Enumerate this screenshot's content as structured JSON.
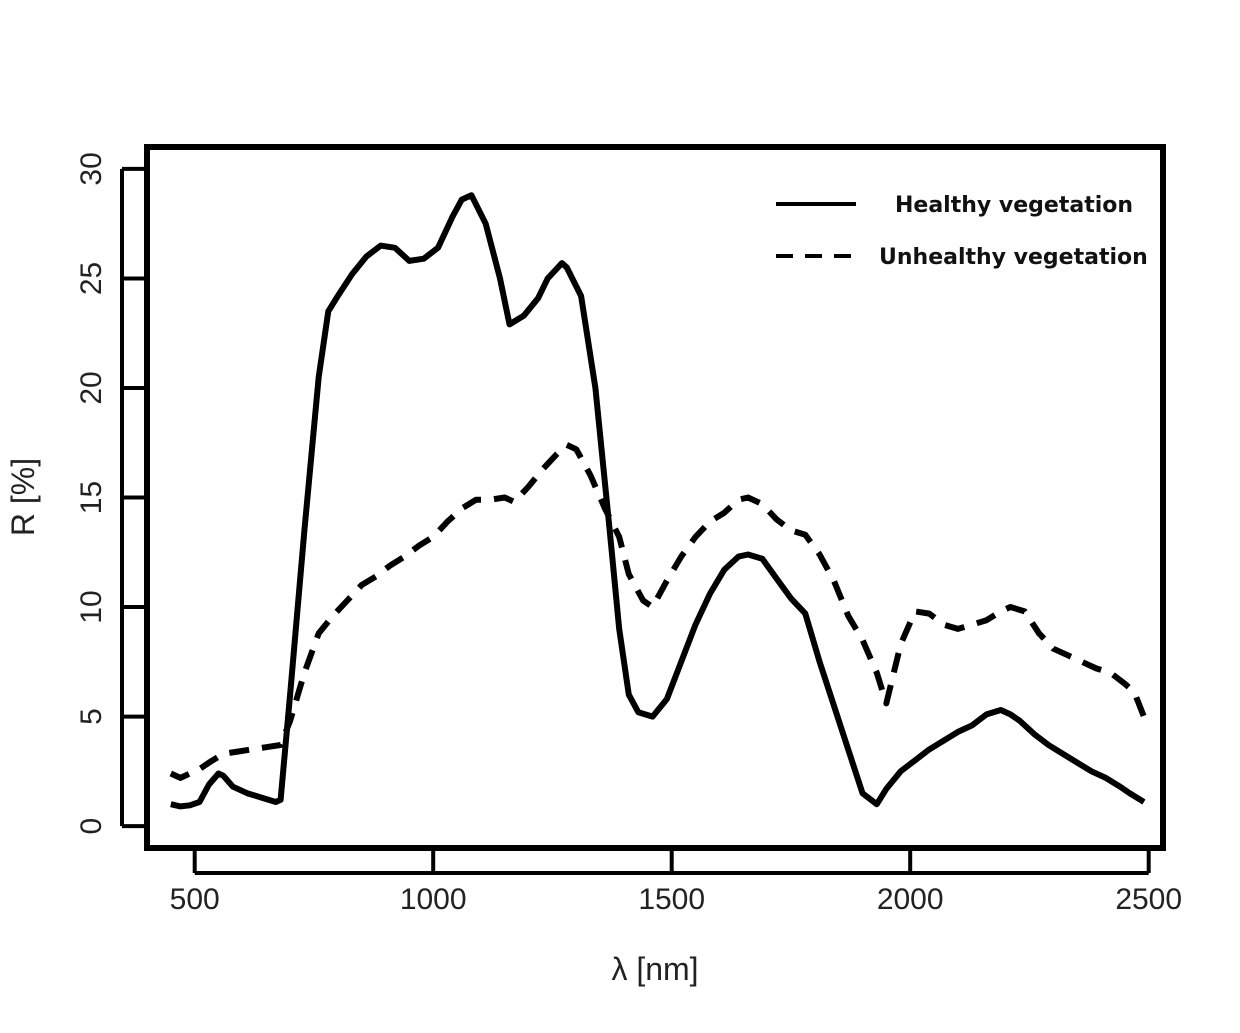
{
  "chart_data": {
    "type": "line",
    "title": "",
    "xlabel": "λ [nm]",
    "ylabel": "R [%]",
    "xlim": [
      400,
      2530
    ],
    "ylim": [
      -1,
      31
    ],
    "x_ticks": [
      500,
      1000,
      1500,
      2000,
      2500
    ],
    "y_ticks": [
      0,
      5,
      10,
      15,
      20,
      25,
      30
    ],
    "grid": false,
    "legend": "top-right",
    "series": [
      {
        "name": "Healthy vegetation",
        "style": "solid",
        "color": "#000000",
        "x": [
          450,
          470,
          490,
          510,
          530,
          550,
          560,
          580,
          610,
          640,
          670,
          680,
          700,
          730,
          760,
          780,
          800,
          830,
          860,
          890,
          920,
          950,
          980,
          1010,
          1040,
          1060,
          1080,
          1110,
          1140,
          1160,
          1190,
          1220,
          1240,
          1270,
          1280,
          1310,
          1340,
          1370,
          1390,
          1410,
          1430,
          1460,
          1490,
          1520,
          1550,
          1580,
          1610,
          1640,
          1660,
          1690,
          1720,
          1750,
          1780,
          1810,
          1840,
          1870,
          1900,
          1930,
          1950,
          1980,
          2010,
          2040,
          2070,
          2100,
          2130,
          2160,
          2190,
          2210,
          2230,
          2260,
          2290,
          2320,
          2350,
          2380,
          2410,
          2440,
          2460,
          2490
        ],
        "values": [
          1.0,
          0.9,
          0.95,
          1.1,
          1.9,
          2.4,
          2.3,
          1.8,
          1.5,
          1.3,
          1.1,
          1.2,
          6.0,
          13.5,
          20.5,
          23.5,
          24.2,
          25.2,
          26.0,
          26.5,
          26.4,
          25.8,
          25.9,
          26.4,
          27.8,
          28.6,
          28.8,
          27.5,
          25.0,
          22.9,
          23.3,
          24.1,
          25.0,
          25.7,
          25.5,
          24.2,
          20.0,
          13.5,
          9.0,
          6.0,
          5.2,
          5.0,
          5.8,
          7.5,
          9.2,
          10.6,
          11.7,
          12.3,
          12.4,
          12.2,
          11.3,
          10.4,
          9.7,
          7.5,
          5.5,
          3.5,
          1.5,
          1.0,
          1.7,
          2.5,
          3.0,
          3.5,
          3.9,
          4.3,
          4.6,
          5.1,
          5.3,
          5.1,
          4.8,
          4.2,
          3.7,
          3.3,
          2.9,
          2.5,
          2.2,
          1.8,
          1.5,
          1.1
        ]
      },
      {
        "name": "Unhealthy vegetation",
        "style": "dashed",
        "color": "#000000",
        "x": [
          450,
          470,
          490,
          510,
          530,
          560,
          590,
          620,
          650,
          680,
          700,
          730,
          760,
          790,
          820,
          850,
          880,
          910,
          940,
          970,
          1000,
          1030,
          1060,
          1090,
          1120,
          1150,
          1170,
          1200,
          1230,
          1260,
          1280,
          1300,
          1330,
          1360,
          1390,
          1410,
          1440,
          1460,
          1490,
          1520,
          1550,
          1580,
          1610,
          1640,
          1660,
          1690,
          1720,
          1750,
          1780,
          1810,
          1840,
          1870,
          1900,
          1930,
          1950,
          1980,
          2010,
          2040,
          2070,
          2100,
          2130,
          2160,
          2190,
          2210,
          2240,
          2270,
          2300,
          2330,
          2360,
          2390,
          2420,
          2450,
          2470,
          2490
        ],
        "values": [
          2.4,
          2.2,
          2.4,
          2.6,
          2.9,
          3.3,
          3.4,
          3.5,
          3.6,
          3.7,
          4.8,
          7.0,
          8.8,
          9.6,
          10.3,
          11.0,
          11.4,
          11.9,
          12.3,
          12.8,
          13.2,
          13.9,
          14.5,
          14.9,
          14.9,
          15.0,
          14.8,
          15.5,
          16.3,
          17.0,
          17.4,
          17.2,
          16.0,
          14.5,
          13.2,
          11.5,
          10.3,
          10.0,
          11.2,
          12.3,
          13.2,
          13.9,
          14.3,
          14.9,
          15.0,
          14.7,
          14.0,
          13.5,
          13.3,
          12.4,
          11.2,
          9.6,
          8.5,
          7.0,
          5.6,
          8.3,
          9.8,
          9.7,
          9.2,
          9.0,
          9.2,
          9.4,
          9.8,
          10.0,
          9.8,
          8.8,
          8.1,
          7.8,
          7.5,
          7.2,
          7.0,
          6.5,
          6.1,
          5.0
        ]
      }
    ]
  }
}
